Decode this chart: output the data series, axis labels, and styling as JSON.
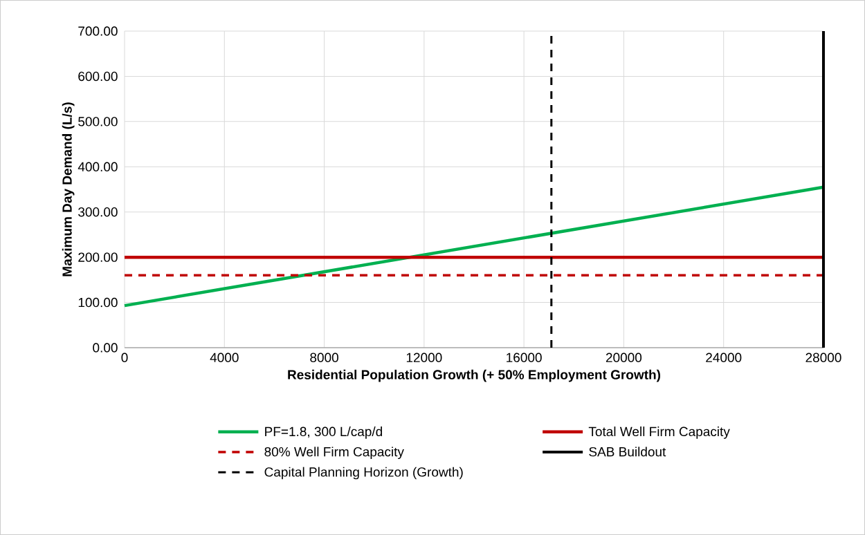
{
  "chart_data": {
    "type": "line",
    "xlabel": "Residential Population Growth (+ 50% Employment Growth)",
    "ylabel": "Maximum Day Demand (L/s)",
    "series": [
      {
        "name": "PF=1.8, 300 L/cap/d",
        "color": "#00b050",
        "line_style": "solid",
        "x": [
          0,
          28000
        ],
        "values": [
          93,
          355
        ]
      },
      {
        "name": "Total Well Firm Capacity",
        "color": "#c00000",
        "line_style": "solid",
        "x": [
          0,
          28000
        ],
        "values": [
          200,
          200
        ]
      },
      {
        "name": "80% Well Firm Capacity",
        "color": "#c00000",
        "line_style": "dashed",
        "x": [
          0,
          28000
        ],
        "values": [
          160,
          160
        ]
      },
      {
        "name": "SAB Buildout",
        "color": "#000000",
        "line_style": "solid",
        "x": [
          28000,
          28000
        ],
        "values": [
          0,
          700
        ]
      },
      {
        "name": "Capital Planning Horizon (Growth)",
        "color": "#000000",
        "line_style": "dashed",
        "x": [
          17100,
          17100
        ],
        "values": [
          0,
          700
        ]
      }
    ],
    "xlim": [
      0,
      28000
    ],
    "xticks": [
      0,
      4000,
      8000,
      12000,
      16000,
      20000,
      24000,
      28000
    ],
    "ylim": [
      0,
      700
    ],
    "yticks": [
      {
        "value": 0,
        "label": "0.00"
      },
      {
        "value": 100,
        "label": "100.00"
      },
      {
        "value": 200,
        "label": "200.00"
      },
      {
        "value": 300,
        "label": "300.00"
      },
      {
        "value": 400,
        "label": "400.00"
      },
      {
        "value": 500,
        "label": "500.00"
      },
      {
        "value": 600,
        "label": "600.00"
      },
      {
        "value": 700,
        "label": "700.00"
      }
    ],
    "grid": true,
    "legend": "bottom"
  }
}
